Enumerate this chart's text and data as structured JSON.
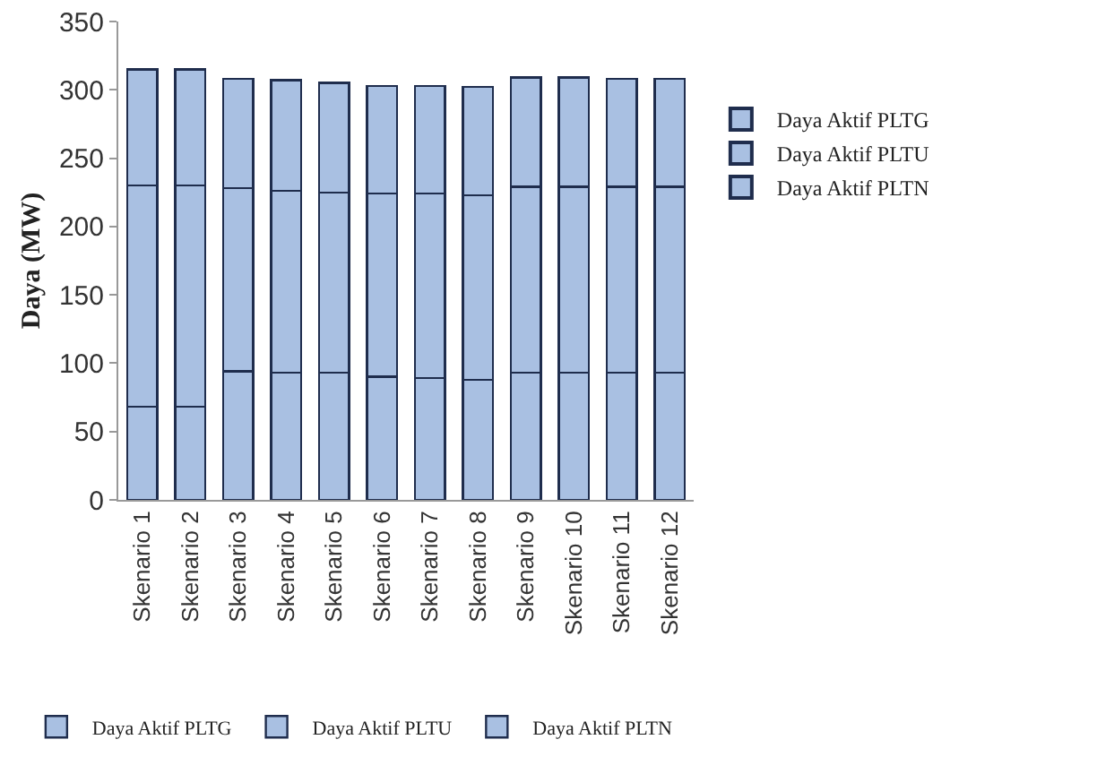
{
  "chart_data": {
    "type": "bar",
    "stacked": true,
    "ylabel": "Daya (MW)",
    "categories": [
      "Skenario 1",
      "Skenario 2",
      "Skenario 3",
      "Skenario 4",
      "Skenario 5",
      "Skenario 6",
      "Skenario 7",
      "Skenario 8",
      "Skenario 9",
      "Skenario 10",
      "Skenario 11",
      "Skenario 12"
    ],
    "series": [
      {
        "name": "Daya Aktif PLTN",
        "color": "#a9c0e2",
        "values": [
          68,
          68,
          94,
          93,
          93,
          90,
          89,
          88,
          93,
          93,
          93,
          93
        ]
      },
      {
        "name": "Daya Aktif PLTU",
        "color": "#a9c0e2",
        "values": [
          162,
          162,
          134,
          133,
          132,
          134,
          135,
          135,
          136,
          136,
          136,
          136
        ]
      },
      {
        "name": "Daya Aktif PLTG",
        "color": "#a9c0e2",
        "values": [
          85,
          85,
          80,
          81,
          80,
          79,
          79,
          79,
          80,
          80,
          79,
          79
        ]
      }
    ],
    "ylim": [
      0,
      350
    ],
    "yticks": [
      0,
      50,
      100,
      150,
      200,
      250,
      300,
      350
    ],
    "grid": false,
    "legend": "right"
  }
}
